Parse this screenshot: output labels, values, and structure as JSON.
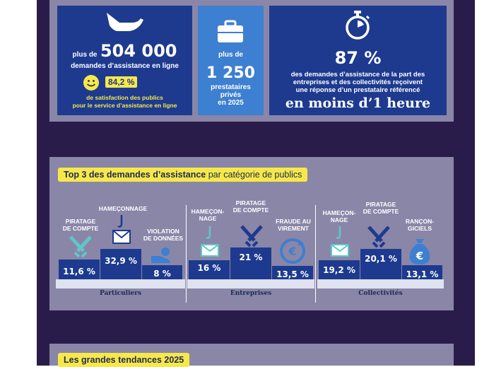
{
  "stats": {
    "requests_prefix": "plus de",
    "requests_value": "504 000",
    "requests_label": "demandes d’assistance en ligne",
    "satisfaction_value": "84,2 %",
    "satisfaction_label_1": "de satisfaction des publics",
    "satisfaction_label_2": "pour le service d’assistance en ligne",
    "providers_prefix": "plus de",
    "providers_value": "1 250",
    "providers_label_1": "prestataires",
    "providers_label_2": "privés",
    "providers_label_3": "en 2025",
    "response_value": "87 %",
    "response_label_1": "des demandes d’assistance de la part des",
    "response_label_2": "entreprises et des collectivités reçoivent",
    "response_label_3": "une réponse d’un prestataire référencé",
    "response_highlight": "en moins d’1 heure"
  },
  "top3": {
    "title_bold": "Top 3 des demandes d’assistance",
    "title_rest": " par catégorie de publics",
    "groups": [
      {
        "name": "Particuliers",
        "items": [
          {
            "label_1": "PIRATAGE",
            "label_2": "DE COMPTE",
            "value": "11,6 %",
            "icon": "swords-icon"
          },
          {
            "label_1": "HAMEÇONNAGE",
            "label_2": "",
            "value": "32,9 %",
            "icon": "phishing-envelope-icon"
          },
          {
            "label_1": "VIOLATION",
            "label_2": "DE DONNÉES",
            "value": "8 %",
            "icon": "data-hand-icon"
          }
        ]
      },
      {
        "name": "Entreprises",
        "items": [
          {
            "label_1": "HAMEÇON-",
            "label_2": "NAGE",
            "value": "16 %",
            "icon": "phishing-envelope-icon"
          },
          {
            "label_1": "PIRATAGE",
            "label_2": "DE COMPTE",
            "value": "21 %",
            "icon": "swords-icon"
          },
          {
            "label_1": "FRAUDE AU",
            "label_2": "VIREMENT",
            "value": "13,5 %",
            "icon": "transfer-euro-icon"
          }
        ]
      },
      {
        "name": "Collectivités",
        "items": [
          {
            "label_1": "HAMEÇON-",
            "label_2": "NAGE",
            "value": "19,2 %",
            "icon": "phishing-envelope-icon"
          },
          {
            "label_1": "PIRATAGE",
            "label_2": "DE COMPTE",
            "value": "20,1 %",
            "icon": "swords-icon"
          },
          {
            "label_1": "RANÇON-",
            "label_2": "GICIELS",
            "value": "13,1 %",
            "icon": "ransom-bag-icon"
          }
        ]
      }
    ]
  },
  "trends": {
    "title": "Les grandes tendances 2025"
  },
  "colors": {
    "navy": "#1d3a8f",
    "light_blue": "#3d7fd1",
    "yellow": "#f7e84a",
    "frame": "#2a1c4a",
    "panel": "#8a86a8",
    "teal": "#5ec8c8"
  }
}
